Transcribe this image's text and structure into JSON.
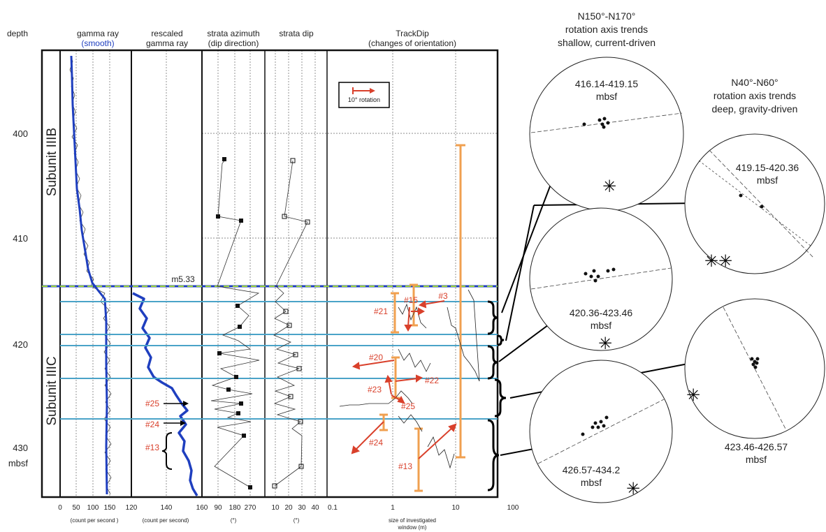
{
  "header": {
    "depth": "depth",
    "gamma": "gamma ray",
    "gamma_smooth": "smooth",
    "rescaled": [
      "rescaled",
      "gamma ray"
    ],
    "azimuth": [
      "strata azimuth",
      "(dip direction)"
    ],
    "dip": "strata dip",
    "trackdip": [
      "TrackDip",
      "(changes of orientation)"
    ]
  },
  "depth_ticks": [
    "400",
    "410",
    "420",
    "430",
    "mbsf"
  ],
  "subunits": {
    "upper": "Subunit IIIB",
    "lower": "Subunit IIIC"
  },
  "boundary_label": "m5.33",
  "legend_label": "10° rotation",
  "axes": {
    "gamma_ticks": [
      "0",
      "50",
      "100",
      "150"
    ],
    "gamma_unit": "(count per second )",
    "rescaled_ticks": [
      "120",
      "140",
      "160"
    ],
    "rescaled_unit": "(count per second)",
    "azimuth_ticks": [
      "90",
      "180",
      "270"
    ],
    "azimuth_unit": "(°)",
    "dip_ticks": [
      "10",
      "20",
      "30",
      "40"
    ],
    "dip_unit": "(°)",
    "track_ticks": [
      "0.1",
      "1",
      "10",
      "100"
    ],
    "track_unit": [
      "size of investigated",
      "window (m)"
    ]
  },
  "gamma_markers": [
    "#25",
    "#24",
    "#13"
  ],
  "track_markers": [
    "#3",
    "#15",
    "#21",
    "#20",
    "#22",
    "#23",
    "#25",
    "#24",
    "#13"
  ],
  "group_titles": {
    "left": [
      "N150°-N170°",
      "rotation axis trends",
      "shallow, current-driven"
    ],
    "right": [
      "N40°-N60°",
      "rotation axis trends",
      "deep, gravity-driven"
    ]
  },
  "stereonets": [
    {
      "label": [
        "416.14-419.15",
        "mbsf"
      ]
    },
    {
      "label": [
        "419.15-420.36",
        "mbsf"
      ]
    },
    {
      "label": [
        "420.36-423.46",
        "mbsf"
      ]
    },
    {
      "label": [
        "423.46-426.57",
        "mbsf"
      ]
    },
    {
      "label": [
        "426.57-434.2",
        "mbsf"
      ]
    }
  ],
  "colors": {
    "gamma": "#1f3fbf",
    "orange": "#f0a050",
    "red": "#d9402b",
    "cyan": "#4aa3c8",
    "green": "#9ad23a"
  }
}
